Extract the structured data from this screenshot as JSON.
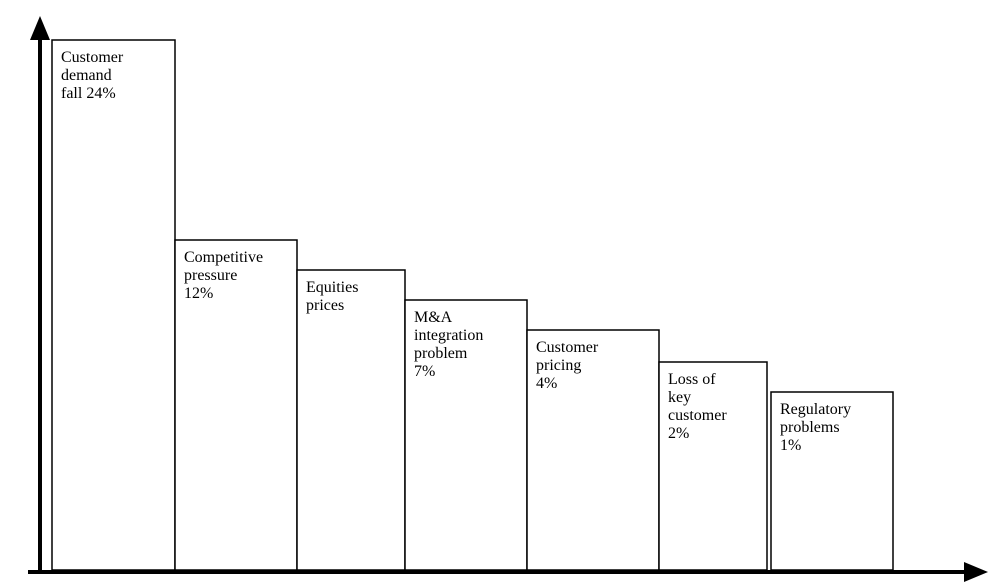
{
  "bars": [
    {
      "lines": [
        "Customer",
        "demand",
        "fall 24%"
      ]
    },
    {
      "lines": [
        "Competitive",
        "pressure",
        "12%"
      ]
    },
    {
      "lines": [
        "Equities",
        "prices"
      ]
    },
    {
      "lines": [
        "M&A",
        "integration",
        "problem",
        "7%"
      ]
    },
    {
      "lines": [
        "Customer",
        "pricing",
        "4%"
      ]
    },
    {
      "lines": [
        "Loss of",
        "key",
        "customer",
        "2%"
      ]
    },
    {
      "lines": [
        "Regulatory",
        "problems",
        "1%"
      ]
    }
  ]
}
